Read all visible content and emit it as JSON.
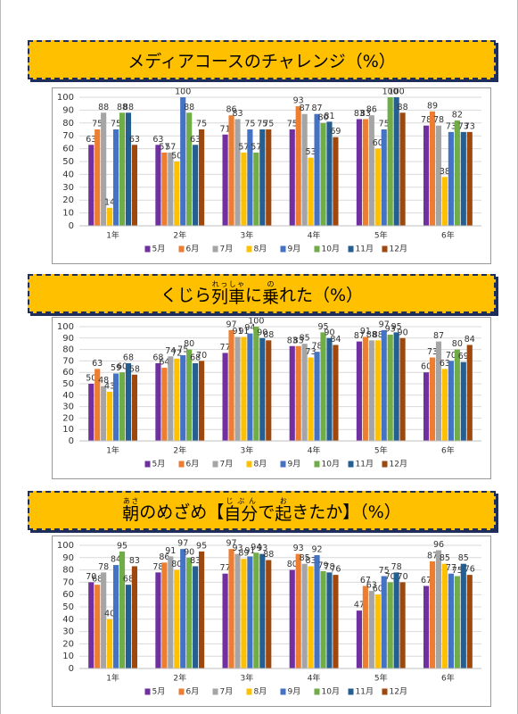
{
  "chart_data": [
    {
      "type": "bar",
      "title_parts": [
        {
          "text": "メディアコースのチャレンジ（%）"
        }
      ],
      "categories": [
        "1年",
        "2年",
        "3年",
        "4年",
        "5年",
        "6年"
      ],
      "series": [
        {
          "name": "5月",
          "color": "#7030a0",
          "values": [
            63,
            63,
            71,
            75,
            83,
            78
          ]
        },
        {
          "name": "6月",
          "color": "#ed7d31",
          "values": [
            75,
            57,
            86,
            93,
            83,
            89
          ]
        },
        {
          "name": "7月",
          "color": "#a5a5a5",
          "values": [
            88,
            57,
            83,
            87,
            86,
            78
          ]
        },
        {
          "name": "8月",
          "color": "#ffc000",
          "values": [
            14,
            50,
            57,
            53,
            60,
            38
          ]
        },
        {
          "name": "9月",
          "color": "#4472c4",
          "values": [
            75,
            100,
            75,
            87,
            75,
            73
          ]
        },
        {
          "name": "10月",
          "color": "#70ad47",
          "values": [
            88,
            88,
            57,
            80,
            100,
            82
          ]
        },
        {
          "name": "11月",
          "color": "#255e91",
          "values": [
            88,
            63,
            75,
            81,
            100,
            73
          ]
        },
        {
          "name": "12月",
          "color": "#9e480e",
          "values": [
            63,
            75,
            75,
            69,
            88,
            73
          ]
        }
      ],
      "ylim": [
        0,
        100
      ],
      "yticks": [
        0,
        10,
        20,
        30,
        40,
        50,
        60,
        70,
        80,
        90,
        100
      ],
      "grid": true
    },
    {
      "type": "bar",
      "title_parts": [
        {
          "text": "くじら"
        },
        {
          "text": "列車",
          "ruby": "れっしゃ"
        },
        {
          "text": "に"
        },
        {
          "text": "乗",
          "ruby": "の"
        },
        {
          "text": "れた（%）"
        }
      ],
      "categories": [
        "1年",
        "2年",
        "3年",
        "4年",
        "5年",
        "6年"
      ],
      "series": [
        {
          "name": "5月",
          "color": "#7030a0",
          "values": [
            50,
            68,
            77,
            83,
            87,
            60
          ]
        },
        {
          "name": "6月",
          "color": "#ed7d31",
          "values": [
            63,
            64,
            97,
            83,
            91,
            73
          ]
        },
        {
          "name": "7月",
          "color": "#a5a5a5",
          "values": [
            48,
            74,
            91,
            85,
            88,
            87
          ]
        },
        {
          "name": "8月",
          "color": "#ffc000",
          "values": [
            43,
            72,
            91,
            73,
            88,
            63
          ]
        },
        {
          "name": "9月",
          "color": "#4472c4",
          "values": [
            59,
            75,
            94,
            78,
            97,
            70
          ]
        },
        {
          "name": "10月",
          "color": "#70ad47",
          "values": [
            60,
            80,
            100,
            95,
            93,
            80
          ]
        },
        {
          "name": "11月",
          "color": "#255e91",
          "values": [
            68,
            68,
            90,
            90,
            95,
            69
          ]
        },
        {
          "name": "12月",
          "color": "#9e480e",
          "values": [
            58,
            70,
            88,
            84,
            90,
            84
          ]
        }
      ],
      "ylim": [
        0,
        100
      ],
      "yticks": [
        0,
        10,
        20,
        30,
        40,
        50,
        60,
        70,
        80,
        90,
        100
      ],
      "grid": true
    },
    {
      "type": "bar",
      "title_parts": [
        {
          "text": "朝",
          "ruby": "あさ"
        },
        {
          "text": "のめざめ【"
        },
        {
          "text": "自分",
          "ruby": "じぶん"
        },
        {
          "text": "で"
        },
        {
          "text": "起",
          "ruby": "お"
        },
        {
          "text": "きたか】（%）"
        }
      ],
      "categories": [
        "1年",
        "2年",
        "3年",
        "4年",
        "5年",
        "6年"
      ],
      "series": [
        {
          "name": "5月",
          "color": "#7030a0",
          "values": [
            70,
            78,
            77,
            80,
            47,
            67
          ]
        },
        {
          "name": "6月",
          "color": "#ed7d31",
          "values": [
            68,
            86,
            97,
            93,
            67,
            87
          ]
        },
        {
          "name": "7月",
          "color": "#a5a5a5",
          "values": [
            78,
            91,
            93,
            85,
            63,
            96
          ]
        },
        {
          "name": "8月",
          "color": "#ffc000",
          "values": [
            40,
            80,
            89,
            83,
            60,
            85
          ]
        },
        {
          "name": "9月",
          "color": "#4472c4",
          "values": [
            84,
            97,
            91,
            92,
            75,
            77
          ]
        },
        {
          "name": "10月",
          "color": "#70ad47",
          "values": [
            95,
            90,
            94,
            79,
            70,
            75
          ]
        },
        {
          "name": "11月",
          "color": "#255e91",
          "values": [
            68,
            83,
            93,
            78,
            78,
            85
          ]
        },
        {
          "name": "12月",
          "color": "#9e480e",
          "values": [
            83,
            95,
            88,
            76,
            70,
            76
          ]
        }
      ],
      "ylim": [
        0,
        100
      ],
      "yticks": [
        0,
        10,
        20,
        30,
        40,
        50,
        60,
        70,
        80,
        90,
        100
      ],
      "grid": true
    }
  ]
}
